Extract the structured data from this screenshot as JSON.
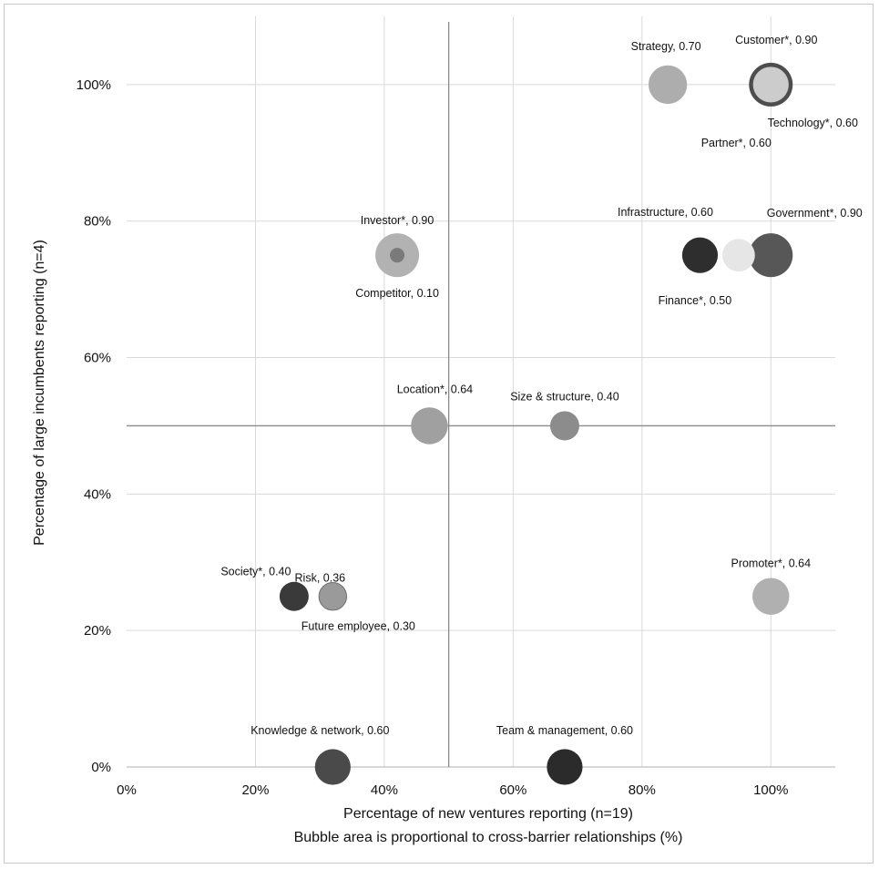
{
  "chart_data": {
    "type": "bubble",
    "xlabel": "Percentage of new ventures reporting (n=19)",
    "xlabel_note": "Bubble area is proportional to cross-barrier relationships (%)",
    "ylabel": "Percentage of large incumbents reporting (n=4)",
    "xlim": [
      0,
      110
    ],
    "ylim": [
      0,
      110
    ],
    "x_ticks": [
      0,
      20,
      40,
      60,
      80,
      100
    ],
    "y_ticks": [
      0,
      20,
      40,
      60,
      80,
      100
    ],
    "x_tick_labels": [
      "0%",
      "20%",
      "40%",
      "60%",
      "80%",
      "100%"
    ],
    "y_tick_labels": [
      "0%",
      "20%",
      "40%",
      "60%",
      "80%",
      "100%"
    ],
    "reference_lines": {
      "x": 50,
      "y": 50
    },
    "grid": true,
    "points": [
      {
        "name": "Strategy",
        "value": 0.7,
        "x": 84,
        "y": 100,
        "color": "#adadad",
        "label": "Strategy, 0.70"
      },
      {
        "name": "Customer*",
        "value": 0.9,
        "x": 100,
        "y": 100,
        "color": "#4d4d4d",
        "label": "Customer*, 0.90"
      },
      {
        "name": "Technology*",
        "value": 0.6,
        "x": 100,
        "y": 100,
        "color": "#cccccc",
        "label": "Technology*, 0.60"
      },
      {
        "name": "Partner*",
        "value": 0.6,
        "x": 100,
        "y": 100,
        "color": "#b5b5b5",
        "label": "Partner*, 0.60"
      },
      {
        "name": "Investor*",
        "value": 0.9,
        "x": 42,
        "y": 75,
        "color": "#b2b2b2",
        "label": "Investor*, 0.90"
      },
      {
        "name": "Competitor",
        "value": 0.1,
        "x": 42,
        "y": 75,
        "color": "#7a7a7a",
        "label": "Competitor, 0.10"
      },
      {
        "name": "Infrastructure",
        "value": 0.6,
        "x": 89,
        "y": 75,
        "color": "#2e2e2e",
        "label": "Infrastructure, 0.60"
      },
      {
        "name": "Finance*",
        "value": 0.5,
        "x": 95,
        "y": 75,
        "color": "#e6e6e6",
        "label": "Finance*, 0.50"
      },
      {
        "name": "Government*",
        "value": 0.9,
        "x": 100,
        "y": 75,
        "color": "#575757",
        "label": "Government*, 0.90"
      },
      {
        "name": "Location*",
        "value": 0.64,
        "x": 47,
        "y": 50,
        "color": "#a0a0a0",
        "label": "Location*, 0.64"
      },
      {
        "name": "Size & structure",
        "value": 0.4,
        "x": 68,
        "y": 50,
        "color": "#8c8c8c",
        "label": "Size & structure, 0.40"
      },
      {
        "name": "Society*",
        "value": 0.4,
        "x": 26,
        "y": 25,
        "color": "#3a3a3a",
        "label": "Society*, 0.40"
      },
      {
        "name": "Risk",
        "value": 0.36,
        "x": 32,
        "y": 25,
        "color": "#9a9a9a",
        "label": "Risk, 0.36"
      },
      {
        "name": "Future employee",
        "value": 0.3,
        "x": 32,
        "y": 25,
        "color": "#a6a6a6",
        "label": "Future employee, 0.30"
      },
      {
        "name": "Promoter*",
        "value": 0.64,
        "x": 100,
        "y": 25,
        "color": "#b0b0b0",
        "label": "Promoter*, 0.64"
      },
      {
        "name": "Knowledge & network",
        "value": 0.6,
        "x": 32,
        "y": 0,
        "color": "#4a4a4a",
        "label": "Knowledge & network, 0.60"
      },
      {
        "name": "Team & management",
        "value": 0.6,
        "x": 68,
        "y": 0,
        "color": "#2b2b2b",
        "label": "Team & management, 0.60"
      }
    ]
  }
}
